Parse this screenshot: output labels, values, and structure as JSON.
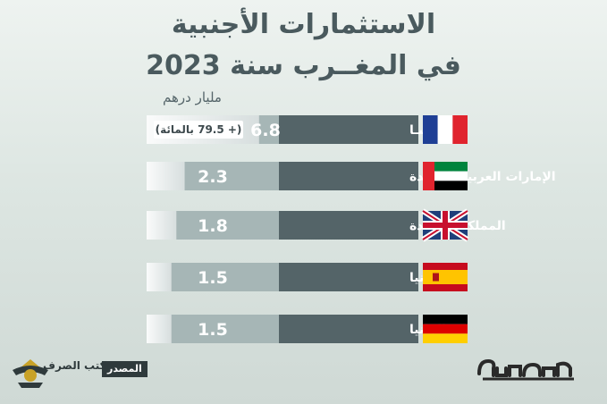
{
  "title": {
    "line1": "الاستثمارات الأجنبية",
    "line2": "في المغــرب سنة 2023"
  },
  "unit_label": "مليار درهم",
  "chart_data": {
    "type": "bar",
    "orientation": "horizontal",
    "categories": [
      "فرنسـا",
      "الإمارات العربية المتحدة",
      "المملكة المتحدة",
      "إسبانيا",
      "ألمانيا"
    ],
    "values": [
      6.8,
      2.3,
      1.8,
      1.5,
      1.5
    ],
    "value_labels": [
      "6.8",
      "2.3",
      "1.8",
      "1.5",
      "1.5"
    ],
    "annotations": [
      {
        "category": "فرنسـا",
        "text": "(+ 79.5 بالمائة)"
      }
    ],
    "flags": [
      "france-flag",
      "uae-flag",
      "uk-flag",
      "spain-flag",
      "germany-flag"
    ],
    "colors": {
      "bar_fill": "#ffffff",
      "bar_track": "#a6b6b6",
      "label_box": "#546468"
    }
  },
  "footer": {
    "source_label": "المصدر",
    "source_name": "مكتب الصرف",
    "brand": "هسبريس",
    "brand_icon": "hespress-logo",
    "emblem_icon": "office-des-changes-emblem"
  }
}
